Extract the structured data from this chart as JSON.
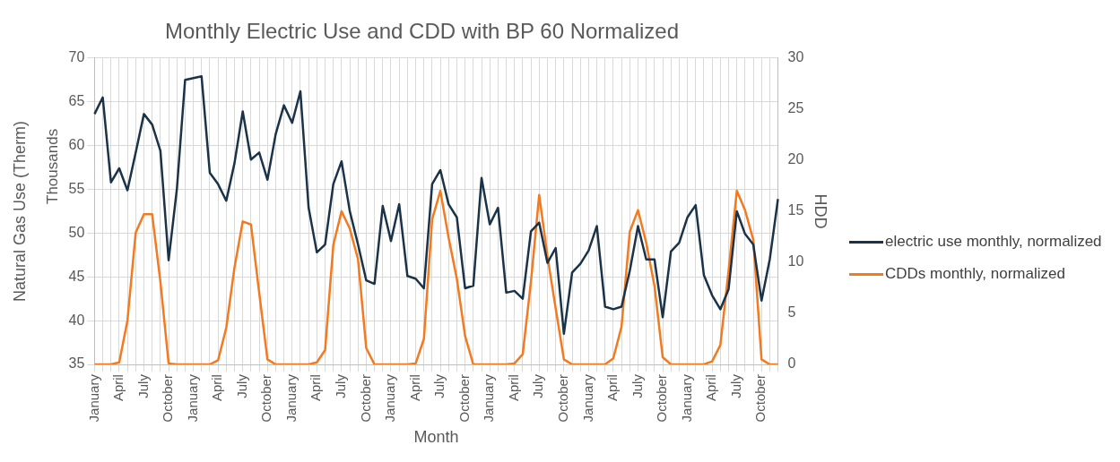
{
  "chart_data": {
    "type": "line",
    "title": "Monthly Electric Use and CDD with BP 60 Normalized",
    "xlabel": "Month",
    "ylabel": "Natural Gas Use (Therm)",
    "y2label": "HDD",
    "annotations": [
      "Thousands"
    ],
    "categories": [
      "January",
      null,
      null,
      "April",
      null,
      null,
      "July",
      null,
      null,
      "October",
      null,
      null,
      "January",
      null,
      null,
      "April",
      null,
      null,
      "July",
      null,
      null,
      "October",
      null,
      null,
      "January",
      null,
      null,
      "April",
      null,
      null,
      "July",
      null,
      null,
      "October",
      null,
      null,
      "January",
      null,
      null,
      "April",
      null,
      null,
      "July",
      null,
      null,
      "October",
      null,
      null,
      "January",
      null,
      null,
      "April",
      null,
      null,
      "July",
      null,
      null,
      "October",
      null,
      null,
      "January",
      null,
      null,
      "April",
      null,
      null,
      "July",
      null,
      null,
      "October",
      null,
      null,
      "January",
      null,
      null,
      "April",
      null,
      null,
      "July",
      null,
      null,
      "October",
      null,
      null
    ],
    "series": [
      {
        "name": "electric use monthly, normalized",
        "color": "#1b3348",
        "values": [
          63.6,
          65.5,
          55.8,
          57.4,
          54.9,
          59.2,
          63.6,
          62.4,
          59.4,
          46.9,
          55.0,
          67.5,
          67.7,
          67.9,
          56.9,
          55.6,
          53.7,
          58.0,
          63.9,
          58.4,
          59.2,
          56.1,
          61.3,
          64.6,
          62.6,
          66.2,
          52.9,
          47.8,
          48.7,
          55.6,
          58.2,
          52.5,
          48.7,
          44.6,
          44.2,
          53.1,
          49.1,
          53.3,
          45.1,
          44.8,
          43.7,
          55.6,
          57.2,
          53.3,
          51.8,
          43.7,
          44.0,
          56.3,
          51.0,
          52.9,
          43.2,
          43.4,
          42.5,
          50.2,
          51.2,
          46.6,
          48.3,
          38.5,
          45.5,
          46.5,
          48.0,
          50.8,
          41.6,
          41.3,
          41.6,
          45.7,
          50.8,
          47.0,
          47.0,
          40.4,
          47.9,
          48.9,
          51.8,
          53.2,
          45.2,
          42.9,
          41.3,
          43.6,
          52.5,
          49.9,
          48.7,
          42.3,
          47.0,
          53.9
        ]
      },
      {
        "name": "CDDs monthly, normalized",
        "color": "#f47a20",
        "axis": "y2",
        "values": [
          0,
          0,
          0,
          0.2,
          4.3,
          12.9,
          14.7,
          14.7,
          8.1,
          0.1,
          0,
          0,
          0,
          0,
          0,
          0.4,
          3.6,
          9.5,
          14.0,
          13.7,
          7.0,
          0.5,
          0,
          0,
          0,
          0,
          0,
          0.2,
          1.4,
          11.7,
          15.0,
          13.3,
          10.3,
          1.6,
          0,
          0,
          0,
          0,
          0,
          0.1,
          2.5,
          14.2,
          17.0,
          12.4,
          8.4,
          2.8,
          0,
          0,
          0,
          0,
          0,
          0.1,
          1.0,
          8.1,
          16.6,
          10.6,
          5.5,
          0.5,
          0,
          0,
          0,
          0,
          0,
          0.6,
          3.7,
          13.0,
          15.1,
          11.9,
          7.7,
          0.7,
          0,
          0,
          0,
          0,
          0,
          0.3,
          1.9,
          9.2,
          17.0,
          15.1,
          12.2,
          0.5,
          0,
          0
        ]
      }
    ],
    "ylim": [
      35,
      70
    ],
    "yticks": [
      35,
      40,
      45,
      50,
      55,
      60,
      65,
      70
    ],
    "y2lim": [
      0,
      30
    ],
    "y2ticks": [
      0,
      5,
      10,
      15,
      20,
      25,
      30
    ],
    "grid": true,
    "legend": "right",
    "marker": "none",
    "line_style": "solid"
  }
}
